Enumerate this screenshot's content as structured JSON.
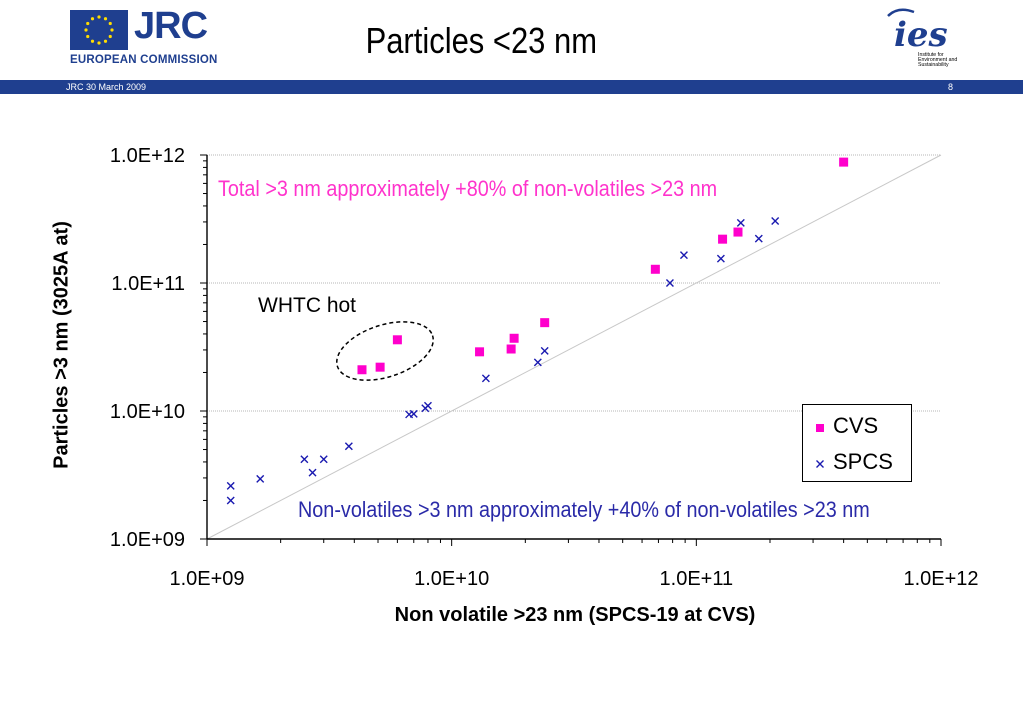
{
  "header": {
    "logo_text": "JRC",
    "commission": "EUROPEAN COMMISSION",
    "title": "Particles <23 nm",
    "bar_left": "JRC  30 March 2009",
    "page_number": "8",
    "ies_logo_text": "ies",
    "ies_subtitle": "Institute for Environment and Sustainability"
  },
  "colors": {
    "brand_blue": "#1f3f8f",
    "cvs": "#ff00cc",
    "spcs": "#1a1ab0",
    "annotation_top": "#ff33cc",
    "annotation_bottom": "#2a2aa8"
  },
  "annotations": {
    "top": "Total >3 nm approximately +80% of non-volatiles >23 nm",
    "bottom": "Non-volatiles >3 nm approximately +40% of non-volatiles >23 nm",
    "whtc": "WHTC hot"
  },
  "legend": {
    "cvs_label": "CVS",
    "spcs_label": "SPCS"
  },
  "chart_data": {
    "type": "scatter",
    "title": "",
    "xlabel": "Non volatile >23 nm (SPCS-19 at CVS)",
    "ylabel": "Particles >3 nm (3025A at)",
    "x_scale": "log",
    "y_scale": "log",
    "xlim": [
      1000000000.0,
      1000000000000.0
    ],
    "ylim": [
      1000000000.0,
      1000000000000.0
    ],
    "x_ticks": [
      "1.0E+09",
      "1.0E+10",
      "1.0E+11",
      "1.0E+12"
    ],
    "y_ticks": [
      "1.0E+09",
      "1.0E+10",
      "1.0E+11",
      "1.0E+12"
    ],
    "grid": "horizontal gridlines at major ticks",
    "reference_line": "y = x",
    "legend_position": "right",
    "series": [
      {
        "name": "CVS",
        "marker": "square",
        "points": [
          [
            4300000000.0,
            21000000000.0
          ],
          [
            5100000000.0,
            22000000000.0
          ],
          [
            6000000000.0,
            36000000000.0
          ],
          [
            13000000000.0,
            29000000000.0
          ],
          [
            17500000000.0,
            30500000000.0
          ],
          [
            18000000000.0,
            37000000000.0
          ],
          [
            24000000000.0,
            49000000000.0
          ],
          [
            68000000000.0,
            128000000000.0
          ],
          [
            128000000000.0,
            220000000000.0
          ],
          [
            148000000000.0,
            250000000000.0
          ],
          [
            400000000000.0,
            880000000000.0
          ]
        ]
      },
      {
        "name": "SPCS",
        "marker": "x",
        "points": [
          [
            1250000000.0,
            2000000000.0
          ],
          [
            1250000000.0,
            2600000000.0
          ],
          [
            1650000000.0,
            2950000000.0
          ],
          [
            2500000000.0,
            4200000000.0
          ],
          [
            2700000000.0,
            3300000000.0
          ],
          [
            3000000000.0,
            4200000000.0
          ],
          [
            3800000000.0,
            5300000000.0
          ],
          [
            6700000000.0,
            9400000000.0
          ],
          [
            7000000000.0,
            9500000000.0
          ],
          [
            7800000000.0,
            10500000000.0
          ],
          [
            8000000000.0,
            11000000000.0
          ],
          [
            13800000000.0,
            18000000000.0
          ],
          [
            22500000000.0,
            24000000000.0
          ],
          [
            24000000000.0,
            29500000000.0
          ],
          [
            78000000000.0,
            100000000000.0
          ],
          [
            89000000000.0,
            165000000000.0
          ],
          [
            126000000000.0,
            155000000000.0
          ],
          [
            152000000000.0,
            295000000000.0
          ],
          [
            180000000000.0,
            222000000000.0
          ],
          [
            210000000000.0,
            305000000000.0
          ]
        ]
      }
    ]
  }
}
